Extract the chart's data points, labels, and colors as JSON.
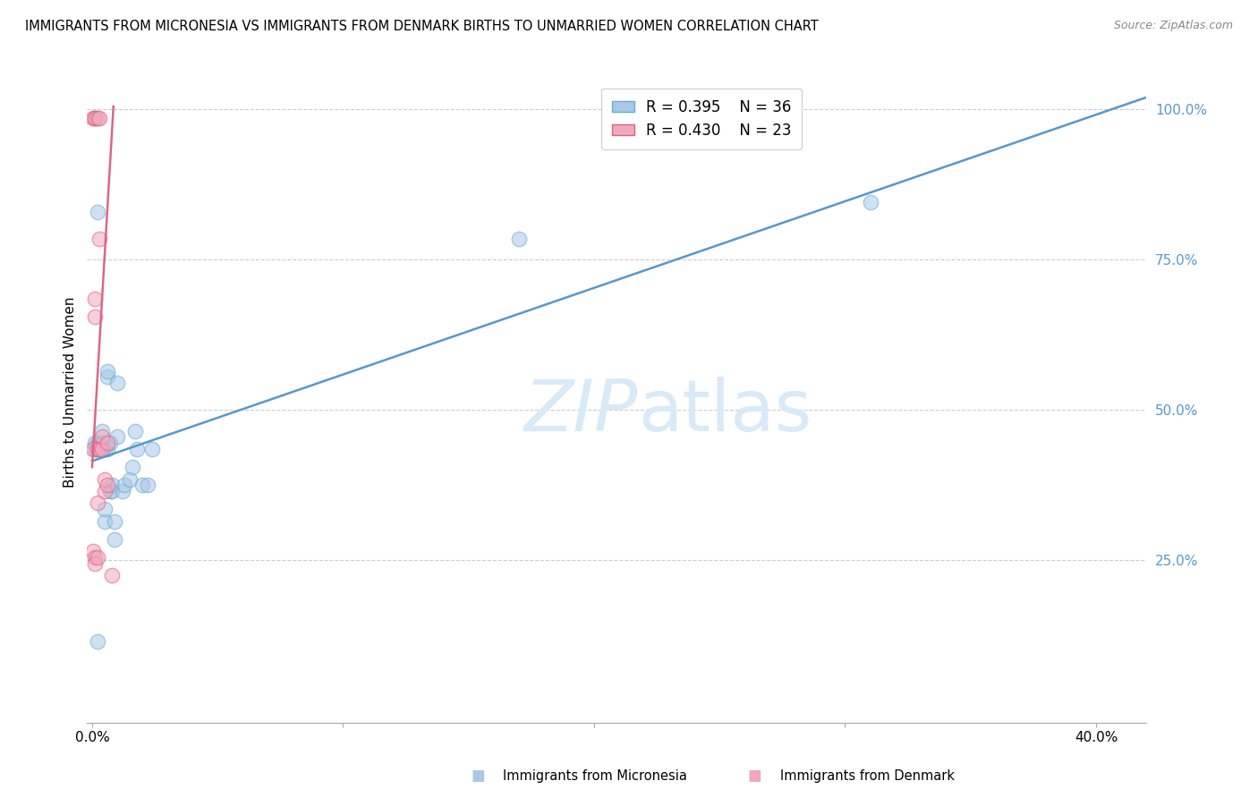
{
  "title": "IMMIGRANTS FROM MICRONESIA VS IMMIGRANTS FROM DENMARK BIRTHS TO UNMARRIED WOMEN CORRELATION CHART",
  "source": "Source: ZipAtlas.com",
  "ylabel": "Births to Unmarried Women",
  "legend_blue_R": "R = 0.395",
  "legend_blue_N": "N = 36",
  "legend_pink_R": "R = 0.430",
  "legend_pink_N": "N = 23",
  "legend_blue_label": "Immigrants from Micronesia",
  "legend_pink_label": "Immigrants from Denmark",
  "ytick_labels": [
    "25.0%",
    "50.0%",
    "75.0%",
    "100.0%"
  ],
  "ytick_values": [
    0.25,
    0.5,
    0.75,
    1.0
  ],
  "xlim": [
    -0.002,
    0.42
  ],
  "ylim": [
    -0.02,
    1.08
  ],
  "blue_color": "#a8c8e8",
  "pink_color": "#f0a8bc",
  "blue_edge_color": "#6aaad4",
  "pink_edge_color": "#e06080",
  "blue_line_color": "#5599cc",
  "pink_line_color": "#dd6688",
  "tick_color": "#5599cc",
  "watermark_color": "#d8eaf8",
  "blue_scatter_x": [
    0.001,
    0.001,
    0.002,
    0.002,
    0.002,
    0.003,
    0.003,
    0.004,
    0.004,
    0.004,
    0.005,
    0.005,
    0.005,
    0.006,
    0.006,
    0.006,
    0.007,
    0.007,
    0.008,
    0.008,
    0.009,
    0.009,
    0.01,
    0.01,
    0.012,
    0.013,
    0.015,
    0.016,
    0.017,
    0.018,
    0.02,
    0.022,
    0.024,
    0.17,
    0.31,
    0.002
  ],
  "blue_scatter_y": [
    0.435,
    0.445,
    0.435,
    0.445,
    0.83,
    0.435,
    0.445,
    0.435,
    0.445,
    0.465,
    0.315,
    0.335,
    0.435,
    0.435,
    0.555,
    0.565,
    0.365,
    0.445,
    0.365,
    0.375,
    0.285,
    0.315,
    0.455,
    0.545,
    0.365,
    0.375,
    0.385,
    0.405,
    0.465,
    0.435,
    0.375,
    0.375,
    0.435,
    0.785,
    0.845,
    0.115
  ],
  "pink_scatter_x": [
    0.0005,
    0.0005,
    0.001,
    0.001,
    0.001,
    0.001,
    0.002,
    0.002,
    0.002,
    0.003,
    0.003,
    0.003,
    0.004,
    0.004,
    0.005,
    0.005,
    0.006,
    0.006,
    0.0005,
    0.001,
    0.001,
    0.002,
    0.008
  ],
  "pink_scatter_y": [
    0.435,
    0.985,
    0.985,
    0.985,
    0.685,
    0.655,
    0.985,
    0.345,
    0.435,
    0.985,
    0.435,
    0.785,
    0.435,
    0.455,
    0.365,
    0.385,
    0.375,
    0.445,
    0.265,
    0.255,
    0.245,
    0.255,
    0.225
  ],
  "blue_trendline_x": [
    0.0,
    0.42
  ],
  "blue_trendline_y": [
    0.415,
    1.02
  ],
  "pink_trendline_x": [
    0.0,
    0.0085
  ],
  "pink_trendline_y": [
    0.405,
    1.005
  ],
  "xtick_positions": [
    0.0,
    0.1,
    0.2,
    0.3,
    0.4
  ],
  "xtick_labels": [
    "0.0%",
    "",
    "",
    "",
    "40.0%"
  ]
}
